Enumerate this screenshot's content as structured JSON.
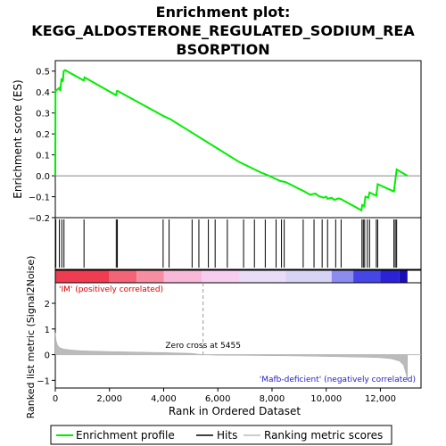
{
  "chart_data": {
    "type": "line",
    "title_lines": [
      "Enrichment plot:",
      "KEGG_ALDOSTERONE_REGULATED_SODIUM_REA",
      "BSORPTION"
    ],
    "es_panel": {
      "ylabel": "Enrichment score (ES)",
      "ylim": [
        -0.2,
        0.55
      ],
      "yticks": [
        -0.2,
        -0.1,
        0.0,
        0.1,
        0.2,
        0.3,
        0.4,
        0.5
      ],
      "ytick_labels": [
        "−0.2",
        "−0.1",
        "0.0",
        "0.1",
        "0.2",
        "0.3",
        "0.4",
        "0.5"
      ],
      "series": [
        {
          "name": "Enrichment profile",
          "color": "#00ee00",
          "x": [
            0,
            5,
            150,
            180,
            230,
            280,
            310,
            360,
            1050,
            1080,
            2240,
            2280,
            2300,
            4000,
            4250,
            6800,
            7600,
            7800,
            8300,
            8500,
            9200,
            9400,
            9600,
            9700,
            9900,
            10000,
            10050,
            10200,
            10300,
            10450,
            10550,
            11300,
            11330,
            11400,
            11450,
            11550,
            11600,
            11850,
            11900,
            12500,
            12550,
            12600,
            13000
          ],
          "y": [
            0.0,
            0.405,
            0.42,
            0.405,
            0.465,
            0.45,
            0.5,
            0.505,
            0.455,
            0.47,
            0.385,
            0.405,
            0.405,
            0.285,
            0.27,
            0.065,
            0.015,
            0.005,
            -0.025,
            -0.03,
            -0.075,
            -0.09,
            -0.085,
            -0.095,
            -0.105,
            -0.1,
            -0.11,
            -0.105,
            -0.115,
            -0.108,
            -0.112,
            -0.165,
            -0.14,
            -0.145,
            -0.1,
            -0.105,
            -0.08,
            -0.095,
            -0.04,
            -0.075,
            -0.025,
            0.03,
            0.0
          ]
        }
      ]
    },
    "hits": {
      "name": "Hits",
      "x": [
        20,
        150,
        240,
        320,
        1060,
        2250,
        2290,
        3980,
        4200,
        5050,
        5300,
        5650,
        5900,
        6350,
        6950,
        7350,
        7750,
        8150,
        8350,
        8450,
        9150,
        9550,
        9850,
        10050,
        10350,
        10550,
        11320,
        11370,
        11420,
        11520,
        11600,
        11850,
        11900,
        12500,
        12550,
        12600
      ]
    },
    "ranked_metric": {
      "name": "Ranking metric scores",
      "ylabel": "Ranked list metric (Signal2Noise)",
      "xlabel": "Rank in Ordered Dataset",
      "ylim": [
        -1.3,
        2.8
      ],
      "yticks": [
        -1,
        0,
        1,
        2
      ],
      "ytick_labels": [
        "−1",
        "0",
        "1",
        "2"
      ],
      "xlim": [
        0,
        13500
      ],
      "xticks": [
        0,
        2000,
        4000,
        6000,
        8000,
        10000,
        12000
      ],
      "xtick_labels": [
        "0",
        "2,000",
        "4,000",
        "6,000",
        "8,000",
        "10,000",
        "12,000"
      ],
      "x": [
        0,
        30,
        80,
        150,
        300,
        600,
        1000,
        2000,
        3000,
        4000,
        5000,
        5455,
        6000,
        7000,
        8000,
        9000,
        10000,
        11000,
        11500,
        12000,
        12400,
        12700,
        12850,
        12950,
        13000
      ],
      "y": [
        0.85,
        0.55,
        0.38,
        0.28,
        0.22,
        0.18,
        0.15,
        0.12,
        0.1,
        0.08,
        0.05,
        0.0,
        -0.02,
        -0.03,
        -0.04,
        -0.05,
        -0.07,
        -0.09,
        -0.1,
        -0.12,
        -0.16,
        -0.25,
        -0.4,
        -0.75,
        -1.0
      ],
      "zero_cross_label": "Zero cross at 5455",
      "zero_cross_x": 5455,
      "positive_label": "'IM' (positively correlated)",
      "negative_label": "'Mafb-deficient' (negatively correlated)"
    },
    "colorbar_blocks": [
      {
        "from": 0,
        "to": 2000,
        "color": "#f03c50"
      },
      {
        "from": 2000,
        "to": 3000,
        "color": "#f46478"
      },
      {
        "from": 3000,
        "to": 4000,
        "color": "#f78da0"
      },
      {
        "from": 4000,
        "to": 5400,
        "color": "#f8b8d8"
      },
      {
        "from": 5400,
        "to": 6800,
        "color": "#f7cdef"
      },
      {
        "from": 6800,
        "to": 8500,
        "color": "#e8dcf7"
      },
      {
        "from": 8500,
        "to": 10200,
        "color": "#d6d3f5"
      },
      {
        "from": 10200,
        "to": 11000,
        "color": "#8c8cf0"
      },
      {
        "from": 11000,
        "to": 12000,
        "color": "#4646e6"
      },
      {
        "from": 12000,
        "to": 12700,
        "color": "#2a22d6"
      },
      {
        "from": 12700,
        "to": 13000,
        "color": "#1a0fb0"
      }
    ],
    "legend": [
      {
        "label": "Enrichment profile",
        "color": "#00ee00"
      },
      {
        "label": "Hits",
        "color": "#000000"
      },
      {
        "label": "Ranking metric scores",
        "color": "#bbbbbb"
      }
    ]
  }
}
